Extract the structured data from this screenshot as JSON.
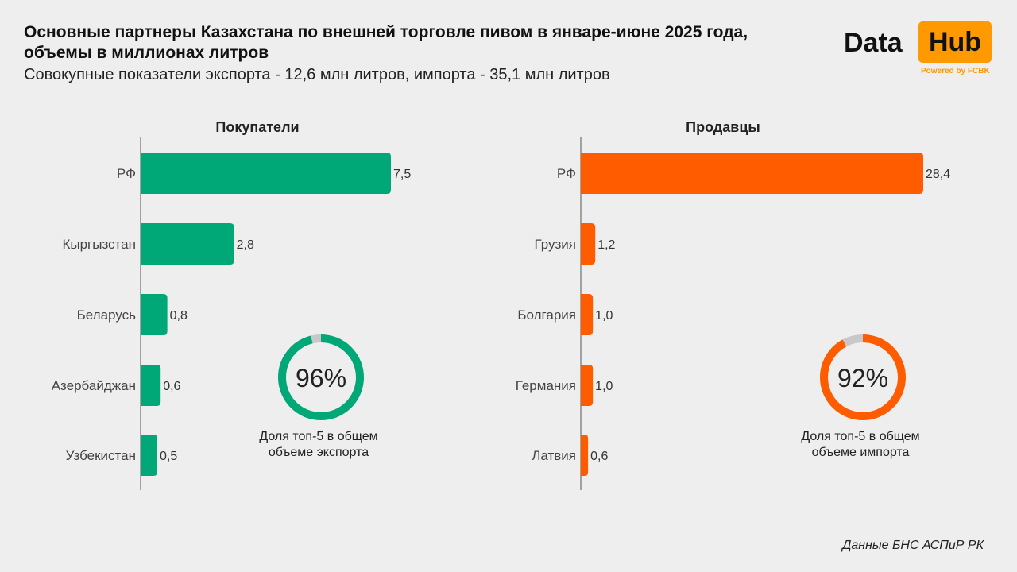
{
  "header": {
    "title": "Основные партнеры Казахстана по внешней торговле пивом в январе-июне 2025 года, объемы в миллионах литров",
    "subtitle": "Совокупные показатели экспорта - 12,6 млн литров, импорта - 35,1 млн литров"
  },
  "logo": {
    "data_text": "Data",
    "hub_text": "Hub",
    "powered_text": "Powered by FCBK"
  },
  "source": "Данные БНС АСПиР РК",
  "colors": {
    "export": "#00a878",
    "import": "#ff5c00",
    "donut_rest": "#c8c8c8",
    "axis": "#555555"
  },
  "chart_data": [
    {
      "type": "bar",
      "orientation": "horizontal",
      "title": "Покупатели",
      "categories": [
        "РФ",
        "Кыргызстан",
        "Беларусь",
        "Азербайджан",
        "Узбекистан"
      ],
      "values": [
        7.5,
        2.8,
        0.8,
        0.6,
        0.5
      ],
      "value_labels": [
        "7,5",
        "2,8",
        "0,8",
        "0,6",
        "0,5"
      ],
      "color": "#00a878",
      "donut": {
        "percent": 96,
        "label": "96%",
        "caption_lines": [
          "Доля топ-5 в общем",
          "объеме экспорта"
        ]
      }
    },
    {
      "type": "bar",
      "orientation": "horizontal",
      "title": "Продавцы",
      "categories": [
        "РФ",
        "Грузия",
        "Болгария",
        "Германия",
        "Латвия"
      ],
      "values": [
        28.4,
        1.2,
        1.0,
        1.0,
        0.6
      ],
      "value_labels": [
        "28,4",
        "1,2",
        "1,0",
        "1,0",
        "0,6"
      ],
      "color": "#ff5c00",
      "donut": {
        "percent": 92,
        "label": "92%",
        "caption_lines": [
          "Доля топ-5 в общем",
          "объеме импорта"
        ]
      }
    }
  ]
}
